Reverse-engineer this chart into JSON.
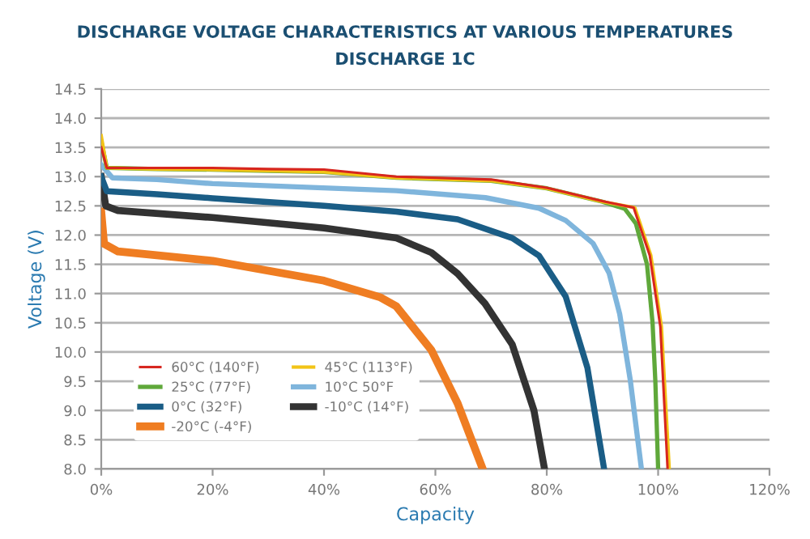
{
  "chart_data": {
    "type": "line",
    "title": "DISCHARGE VOLTAGE CHARACTERISTICS AT VARIOUS TEMPERATURES",
    "subtitle": "DISCHARGE 1C",
    "xlabel": "Capacity",
    "ylabel": "Voltage (V)",
    "xlim": [
      0,
      120
    ],
    "xticks": [
      {
        "value": 0,
        "label": "0%"
      },
      {
        "value": 20,
        "label": "20%"
      },
      {
        "value": 40,
        "label": "40%"
      },
      {
        "value": 60,
        "label": "60%"
      },
      {
        "value": 80,
        "label": "80%"
      },
      {
        "value": 100,
        "label": "100%"
      },
      {
        "value": 120,
        "label": "120%"
      }
    ],
    "ylim": [
      8,
      14.5
    ],
    "yticks": [
      {
        "value": 8,
        "label": "8.0"
      },
      {
        "value": 8.5,
        "label": "8.5"
      },
      {
        "value": 9,
        "label": "9.0"
      },
      {
        "value": 9.5,
        "label": "9.5"
      },
      {
        "value": 10,
        "label": "10.0"
      },
      {
        "value": 10.5,
        "label": "10.5"
      },
      {
        "value": 11,
        "label": "11.0"
      },
      {
        "value": 11.5,
        "label": "11.5"
      },
      {
        "value": 12,
        "label": "12.0"
      },
      {
        "value": 12.5,
        "label": "12.5"
      },
      {
        "value": 13,
        "label": "13.0"
      },
      {
        "value": 13.5,
        "label": "13.5"
      },
      {
        "value": 14,
        "label": "14.0"
      },
      {
        "value": 14.5,
        "label": "14.5"
      }
    ],
    "grid": "y",
    "legend": "bottom left",
    "marker": "none",
    "line_style": "solid",
    "series": [
      {
        "name": "60°C (140°F)",
        "color": "#d7261e",
        "x": [
          0,
          1,
          10,
          20,
          30,
          40,
          53,
          70,
          80,
          90,
          95.6,
          98.5,
          100.4,
          101.7
        ],
        "values": [
          13.5,
          13.15,
          13.15,
          13.15,
          13.13,
          13.12,
          13.0,
          12.95,
          12.81,
          12.58,
          12.47,
          11.65,
          10.43,
          8.0
        ]
      },
      {
        "name": "45°C (113°F)",
        "color": "#f2c417",
        "x": [
          0,
          1,
          10,
          20,
          30,
          40,
          53,
          70,
          80,
          90,
          95.8,
          98.7,
          100.6,
          102.0
        ],
        "values": [
          13.7,
          13.15,
          13.13,
          13.12,
          13.1,
          13.08,
          12.98,
          12.93,
          12.8,
          12.57,
          12.47,
          11.65,
          10.43,
          8.0
        ]
      },
      {
        "name": "25°C (77°F)",
        "color": "#5fa83a",
        "x": [
          0,
          1,
          10,
          20,
          30,
          40,
          53,
          70,
          80,
          90,
          94,
          96,
          98,
          99,
          99.5,
          100
        ],
        "values": [
          13.6,
          13.15,
          13.13,
          13.12,
          13.1,
          13.08,
          12.98,
          12.93,
          12.8,
          12.57,
          12.45,
          12.2,
          11.5,
          10.5,
          9.5,
          8.0
        ]
      },
      {
        "name": "10°C 50°F",
        "color": "#7fb5dc",
        "x": [
          0,
          2,
          10,
          20,
          53,
          69,
          78.6,
          83.4,
          88.3,
          91.2,
          93.1,
          95,
          97
        ],
        "values": [
          13.2,
          12.98,
          12.95,
          12.88,
          12.76,
          12.64,
          12.46,
          12.25,
          11.86,
          11.35,
          10.65,
          9.52,
          8.0
        ]
      },
      {
        "name": "0°C (32°F)",
        "color": "#1a5d86",
        "x": [
          0,
          1,
          10,
          20,
          40,
          53,
          64,
          73.8,
          78.6,
          83.4,
          87.3,
          90.3
        ],
        "values": [
          13.0,
          12.75,
          12.7,
          12.63,
          12.5,
          12.4,
          12.27,
          11.95,
          11.65,
          10.95,
          9.73,
          8.0
        ]
      },
      {
        "name": "-10°C (14°F)",
        "color": "#333333",
        "x": [
          0,
          0.8,
          3,
          20,
          40,
          53,
          59.3,
          64,
          68.9,
          73.8,
          77.7,
          79.6
        ],
        "values": [
          13.0,
          12.5,
          12.42,
          12.3,
          12.12,
          11.95,
          11.7,
          11.34,
          10.83,
          10.13,
          9.0,
          8.0
        ]
      },
      {
        "name": "-20°C (-4°F)",
        "color": "#ef7d22",
        "x": [
          0,
          0.5,
          3,
          20,
          30,
          40,
          50,
          53,
          59.3,
          64,
          68.5
        ],
        "values": [
          12.4,
          11.85,
          11.72,
          11.56,
          11.39,
          11.22,
          10.94,
          10.78,
          10.03,
          9.12,
          8.0
        ]
      }
    ]
  }
}
